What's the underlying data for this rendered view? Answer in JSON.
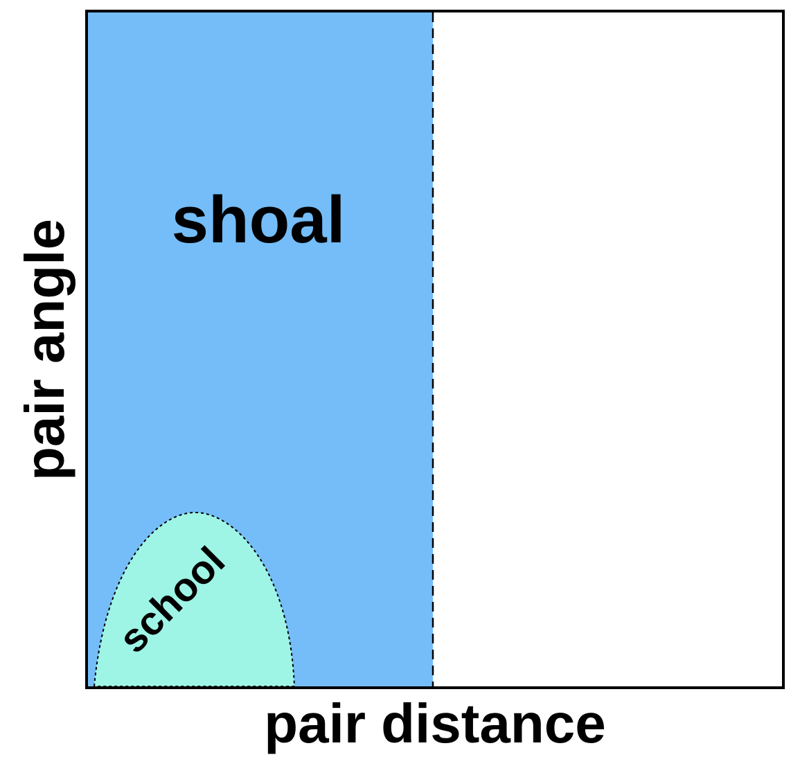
{
  "axes": {
    "x_label": "pair distance",
    "y_label": "pair angle"
  },
  "regions": {
    "shoal": {
      "label": "shoal",
      "color": "#74bdf8"
    },
    "school": {
      "label": "school",
      "color": "#9ef5e6"
    }
  },
  "colors": {
    "frame": "#000000",
    "background": "#ffffff"
  }
}
